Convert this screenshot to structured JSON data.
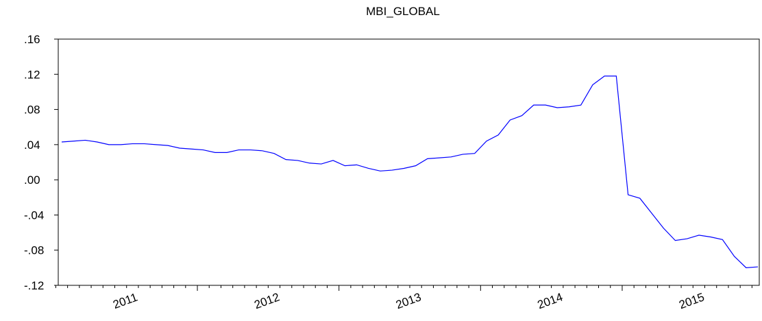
{
  "chart_data": {
    "type": "line",
    "title": "MBI_GLOBAL",
    "categories": [
      null,
      null,
      null,
      null,
      null,
      null,
      "2011",
      null,
      null,
      null,
      null,
      null,
      null,
      null,
      null,
      null,
      null,
      null,
      "2012",
      null,
      null,
      null,
      null,
      null,
      null,
      null,
      null,
      null,
      null,
      null,
      "2013",
      null,
      null,
      null,
      null,
      null,
      null,
      null,
      null,
      null,
      null,
      null,
      "2014",
      null,
      null,
      null,
      null,
      null,
      null,
      null,
      null,
      null,
      null,
      null,
      "2015",
      null,
      null,
      null,
      null,
      null
    ],
    "series": [
      {
        "name": "MBI_GLOBAL",
        "color": "#0000ff",
        "values": [
          0.043,
          0.044,
          0.045,
          0.043,
          0.04,
          0.04,
          0.041,
          0.041,
          0.04,
          0.039,
          0.036,
          0.035,
          0.034,
          0.031,
          0.031,
          0.034,
          0.034,
          0.033,
          0.03,
          0.023,
          0.022,
          0.019,
          0.018,
          0.022,
          0.016,
          0.017,
          0.013,
          0.01,
          0.011,
          0.013,
          0.016,
          0.024,
          0.025,
          0.026,
          0.029,
          0.03,
          0.044,
          0.051,
          0.068,
          0.073,
          0.085,
          0.085,
          0.082,
          0.083,
          0.085,
          0.108,
          0.118,
          0.118,
          -0.017,
          -0.021,
          -0.038,
          -0.055,
          -0.069,
          -0.067,
          -0.063,
          -0.065,
          -0.068,
          -0.087,
          -0.1,
          -0.099
        ]
      }
    ],
    "ylim": [
      -0.12,
      0.16
    ],
    "yticks": [
      {
        "value": -0.12,
        "label": "-.12"
      },
      {
        "value": -0.08,
        "label": "-.08"
      },
      {
        "value": -0.04,
        "label": "-.04"
      },
      {
        "value": 0,
        "label": ".00"
      },
      {
        "value": 0.04,
        "label": ".04"
      },
      {
        "value": 0.08,
        "label": ".08"
      },
      {
        "value": 0.12,
        "label": ".12"
      },
      {
        "value": 0.16,
        "label": ".16"
      }
    ]
  }
}
